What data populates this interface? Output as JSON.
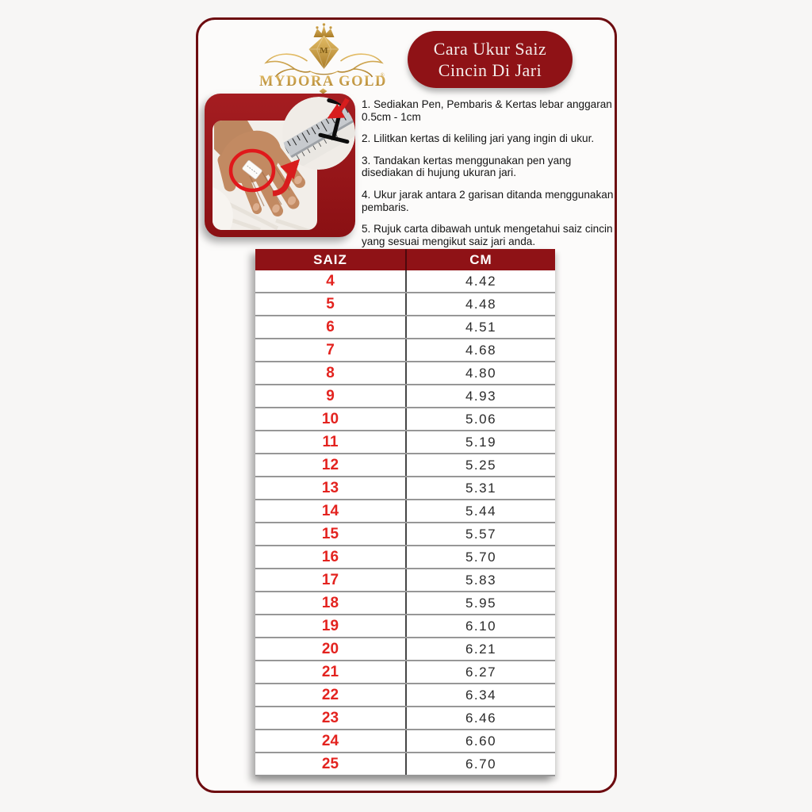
{
  "colors": {
    "dark_red": "#8f1216",
    "maroon_border": "#6d0c10",
    "bright_red": "#e3231f",
    "gold": "#c39b4a",
    "page_bg": "#f7f6f5",
    "card_bg": "#fcfbfa"
  },
  "header": {
    "brand": "MYDORA GOLD",
    "registered_mark": "®",
    "logo_monogram": "M",
    "badge_line1": "Cara Ukur Saiz",
    "badge_line2": "Cincin Di Jari"
  },
  "illustration": {
    "icons": [
      "hand-photo",
      "paper-strip",
      "red-circle-highlight",
      "ruler-inset",
      "mark-h-lines",
      "curved-arrow"
    ]
  },
  "instructions": {
    "items": [
      "1. Sediakan Pen, Pembaris & Kertas lebar anggaran 0.5cm - 1cm",
      "2. Lilitkan kertas di keliling jari yang ingin di ukur.",
      "3. Tandakan kertas menggunakan pen yang disediakan di hujung ukuran jari.",
      "4. Ukur jarak antara 2 garisan ditanda menggunakan pembaris.",
      "5. Rujuk carta dibawah untuk mengetahui saiz cincin yang sesuai mengikut saiz jari anda."
    ]
  },
  "size_table": {
    "headers": [
      "SAIZ",
      "CM"
    ],
    "rows": [
      [
        "4",
        "4.42"
      ],
      [
        "5",
        "4.48"
      ],
      [
        "6",
        "4.51"
      ],
      [
        "7",
        "4.68"
      ],
      [
        "8",
        "4.80"
      ],
      [
        "9",
        "4.93"
      ],
      [
        "10",
        "5.06"
      ],
      [
        "11",
        "5.19"
      ],
      [
        "12",
        "5.25"
      ],
      [
        "13",
        "5.31"
      ],
      [
        "14",
        "5.44"
      ],
      [
        "15",
        "5.57"
      ],
      [
        "16",
        "5.70"
      ],
      [
        "17",
        "5.83"
      ],
      [
        "18",
        "5.95"
      ],
      [
        "19",
        "6.10"
      ],
      [
        "20",
        "6.21"
      ],
      [
        "21",
        "6.27"
      ],
      [
        "22",
        "6.34"
      ],
      [
        "23",
        "6.46"
      ],
      [
        "24",
        "6.60"
      ],
      [
        "25",
        "6.70"
      ]
    ]
  },
  "chart_data": {
    "type": "table",
    "title": "Cara Ukur Saiz Cincin Di Jari",
    "columns": [
      "SAIZ",
      "CM"
    ],
    "sizes": [
      4,
      5,
      6,
      7,
      8,
      9,
      10,
      11,
      12,
      13,
      14,
      15,
      16,
      17,
      18,
      19,
      20,
      21,
      22,
      23,
      24,
      25
    ],
    "cm_values": [
      4.42,
      4.48,
      4.51,
      4.68,
      4.8,
      4.93,
      5.06,
      5.19,
      5.25,
      5.31,
      5.44,
      5.57,
      5.7,
      5.83,
      5.95,
      6.1,
      6.21,
      6.27,
      6.34,
      6.46,
      6.6,
      6.7
    ]
  }
}
